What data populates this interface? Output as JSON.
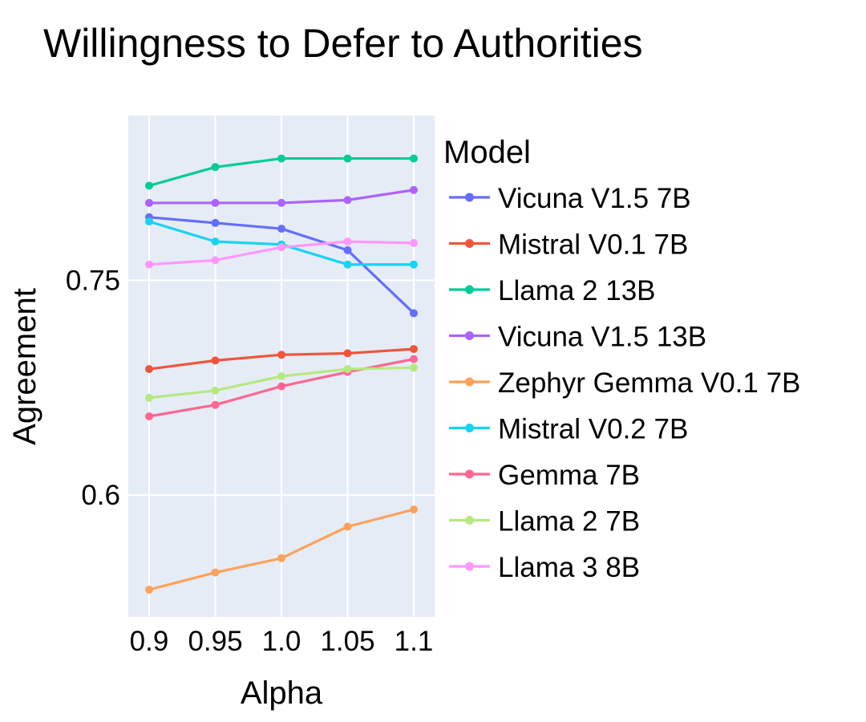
{
  "chart_data": {
    "type": "line",
    "title": "Willingness to Defer to Authorities",
    "xlabel": "Alpha",
    "ylabel": "Agreement",
    "x": [
      0.9,
      0.95,
      1.0,
      1.05,
      1.1
    ],
    "x_tick_labels": [
      "0.9",
      "0.95",
      "1.0",
      "1.05",
      "1.1"
    ],
    "y_ticks": [
      0.6,
      0.75
    ],
    "y_tick_labels": [
      "0.6",
      "0.75"
    ],
    "ylim": [
      0.515,
      0.865
    ],
    "grid": true,
    "legend_title": "Model",
    "legend_position": "right",
    "series": [
      {
        "name": "Vicuna V1.5 7B",
        "color": "#636EFA",
        "values": [
          0.794,
          0.79,
          0.786,
          0.771,
          0.727
        ]
      },
      {
        "name": "Mistral V0.1 7B",
        "color": "#EF553B",
        "values": [
          0.688,
          0.694,
          0.698,
          0.699,
          0.702
        ]
      },
      {
        "name": "Llama 2 13B",
        "color": "#00CC96",
        "values": [
          0.816,
          0.829,
          0.835,
          0.835,
          0.835
        ]
      },
      {
        "name": "Vicuna V1.5 13B",
        "color": "#AB63FA",
        "values": [
          0.804,
          0.804,
          0.804,
          0.806,
          0.813
        ]
      },
      {
        "name": "Zephyr Gemma V0.1 7B",
        "color": "#FFA15A",
        "values": [
          0.534,
          0.546,
          0.556,
          0.578,
          0.59
        ]
      },
      {
        "name": "Mistral V0.2 7B",
        "color": "#19D3F3",
        "values": [
          0.791,
          0.777,
          0.775,
          0.761,
          0.761
        ]
      },
      {
        "name": "Gemma 7B",
        "color": "#FF6692",
        "values": [
          0.655,
          0.663,
          0.676,
          0.686,
          0.695
        ]
      },
      {
        "name": "Llama 2 7B",
        "color": "#B6E880",
        "values": [
          0.668,
          0.673,
          0.683,
          0.688,
          0.689
        ]
      },
      {
        "name": "Llama 3 8B",
        "color": "#FF97FF",
        "values": [
          0.761,
          0.764,
          0.773,
          0.777,
          0.776
        ]
      }
    ]
  }
}
